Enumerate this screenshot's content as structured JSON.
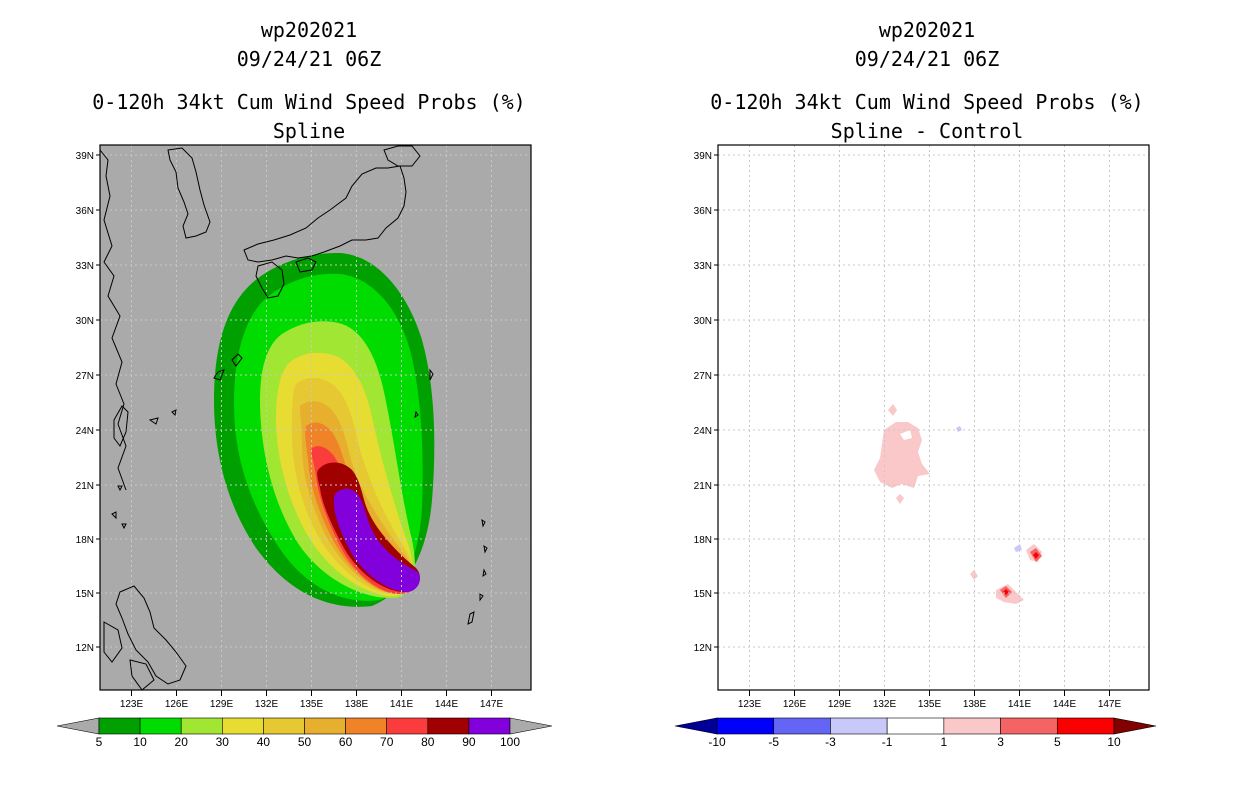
{
  "left": {
    "storm_id": "wp202021",
    "datetime": "09/24/21 06Z",
    "product": "0-120h 34kt Cum Wind Speed Probs (%)",
    "subtitle": "Spline",
    "colorbar": {
      "labels": [
        "5",
        "10",
        "20",
        "30",
        "40",
        "50",
        "60",
        "70",
        "80",
        "90",
        "100"
      ],
      "colors": [
        "#00a000",
        "#00dc00",
        "#a0e632",
        "#e6dc32",
        "#e6c832",
        "#e6af2d",
        "#f08228",
        "#fa3c3c",
        "#a00000",
        "#8200dc"
      ],
      "below_color": "#aaaaaa",
      "above_color": "#aaaaaa"
    }
  },
  "right": {
    "storm_id": "wp202021",
    "datetime": "09/24/21 06Z",
    "product": "0-120h 34kt Cum Wind Speed Probs (%)",
    "subtitle": "Spline - Control",
    "colorbar": {
      "labels": [
        "-10",
        "-5",
        "-3",
        "-1",
        "1",
        "3",
        "5",
        "10"
      ],
      "colors": [
        "#0000fa",
        "#6464f5",
        "#c8c8fa",
        "#ffffff",
        "#fac8c8",
        "#f56464",
        "#fa0000"
      ],
      "below_color": "#000096",
      "above_color": "#820000"
    }
  },
  "axes": {
    "lon_labels": [
      "123E",
      "126E",
      "129E",
      "132E",
      "135E",
      "138E",
      "141E",
      "144E",
      "147E"
    ],
    "lat_labels": [
      "39N",
      "36N",
      "33N",
      "30N",
      "27N",
      "24N",
      "21N",
      "18N",
      "15N",
      "12N"
    ]
  },
  "colors": {
    "ocean_left": "#aaaaaa",
    "ocean_right": "#ffffff",
    "grid": "#c8c8c8"
  }
}
